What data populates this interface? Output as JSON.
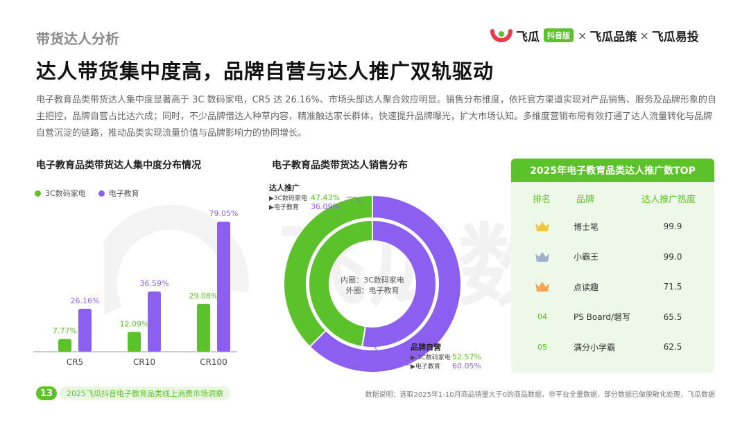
{
  "header": {
    "section_label": "带货达人分析",
    "title": "达人带货集中度高，品牌自营与达人推广双轨驱动",
    "brand_a": "飞瓜",
    "brand_badge": "抖音版",
    "brand_b": "飞瓜品策",
    "brand_c": "飞瓜易投",
    "times": "×"
  },
  "intro": "电子教育品类带货达人集中度显著高于 3C 数码家电，CR5 达 26.16%、市场头部达人聚合效应明显。销售分布维度，依托官方渠道实现对产品销售、服务及品牌形象的自主把控，品牌自营占比达六成；同时，不少品牌借达人种草内容，精准触达家长群体，快速提升品牌曝光，扩大市场认知。多维度营销布局有效打通了达人流量转化与品牌自营沉淀的链路，推动品类实现流量价值与品牌影响力的协同增长。",
  "watermark": "飞瓜数据",
  "colors": {
    "green": "#5cc22b",
    "purple": "#8c5ff0",
    "light_green": "#eef8e8"
  },
  "chart_data": [
    {
      "type": "bar",
      "title": "电子教育品类带货达人集中度分布情况",
      "categories": [
        "CR5",
        "CR10",
        "CR100"
      ],
      "series": [
        {
          "name": "3C数码家电",
          "values": [
            7.77,
            12.09,
            29.08
          ],
          "labels": [
            "7.77%",
            "12.09%",
            "29.08%"
          ],
          "color": "#5cc22b"
        },
        {
          "name": "电子教育",
          "values": [
            26.16,
            36.59,
            79.05
          ],
          "labels": [
            "26.16%",
            "36.59%",
            "79.05%"
          ],
          "color": "#8c5ff0"
        }
      ],
      "ylim": [
        0,
        85
      ],
      "legend": "top-left"
    },
    {
      "type": "pie",
      "title": "电子教育品类带货达人销售分布",
      "rings": [
        {
          "ring": "inner",
          "name": "3C数码家电",
          "slices": [
            {
              "label": "达人推广",
              "value": 47.43
            },
            {
              "label": "品牌自营",
              "value": 52.57
            }
          ]
        },
        {
          "ring": "outer",
          "name": "电子教育",
          "slices": [
            {
              "label": "达人推广",
              "value": 36.09
            },
            {
              "label": "品牌自营",
              "value": 60.05
            }
          ]
        }
      ],
      "center_text": [
        "内圈：3C数码家电",
        "外圈：电子教育"
      ],
      "callouts": [
        {
          "heading": "达人推广",
          "lines": [
            {
              "name": "▶3C数码家电",
              "value": "47.43%"
            },
            {
              "name": "▶电子教育",
              "value": "36.09%"
            }
          ]
        },
        {
          "heading": "品牌自营",
          "lines": [
            {
              "name": "▶ 3C数码家电",
              "value": "52.57%"
            },
            {
              "name": "▶电子教育",
              "value": "60.05%"
            }
          ]
        }
      ]
    },
    {
      "type": "table",
      "title": "2025年电子教育品类达人推广数TOP",
      "columns": [
        "排名",
        "品牌",
        "达人推广热度"
      ],
      "rows": [
        {
          "rank": "1",
          "rank_icon": "gold-crown-icon",
          "brand": "博士笔",
          "score": "99.9"
        },
        {
          "rank": "2",
          "rank_icon": "silver-crown-icon",
          "brand": "小霸王",
          "score": "99.0"
        },
        {
          "rank": "3",
          "rank_icon": "bronze-crown-icon",
          "brand": "点读趣",
          "score": "71.5"
        },
        {
          "rank": "04",
          "rank_icon": "",
          "brand": "PS Board/磐写",
          "score": "65.5"
        },
        {
          "rank": "05",
          "rank_icon": "",
          "brand": "满分小学霸",
          "score": "62.5"
        }
      ]
    }
  ],
  "footer": {
    "page_number": "13",
    "report_name": "2025飞瓜抖音电子教育品类线上消费市场洞察",
    "note": "数据说明：选取2025年1-10月商品销量大于0的商品数据，非平台全量数据，部分数据已做脱敏化处理，飞瓜数据"
  }
}
